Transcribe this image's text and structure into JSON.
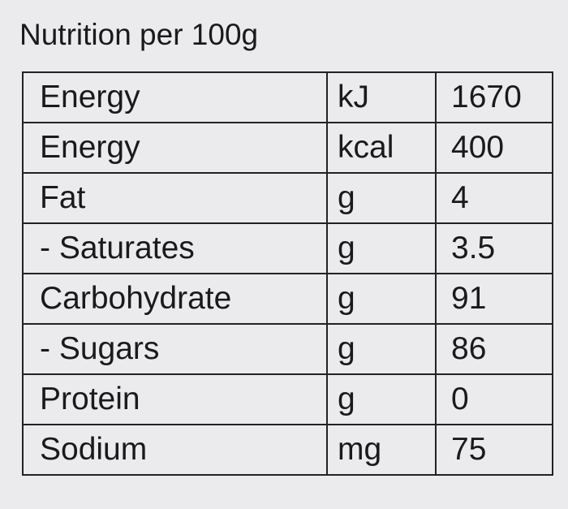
{
  "title": "Nutrition per 100g",
  "table": {
    "rows": [
      [
        "Energy",
        "kJ",
        "1670"
      ],
      [
        "Energy",
        "kcal",
        "400"
      ],
      [
        "Fat",
        "g",
        "4"
      ],
      [
        "- Saturates",
        "g",
        "3.5"
      ],
      [
        "Carbohydrate",
        "g",
        "91"
      ],
      [
        "- Sugars",
        "g",
        "86"
      ],
      [
        "Protein",
        "g",
        "0"
      ],
      [
        "Sodium",
        "mg",
        "75"
      ]
    ]
  }
}
